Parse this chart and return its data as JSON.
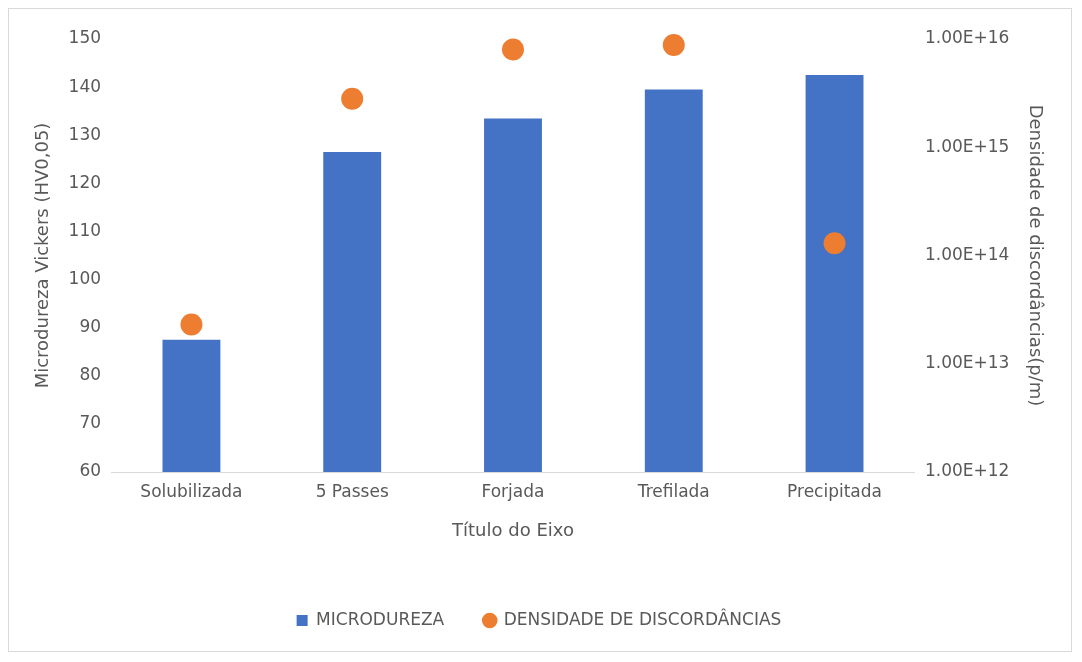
{
  "chart_data": {
    "type": "bar",
    "xlabel": "Título do Eixo",
    "ylabel": "Microdureza Vickers (HV0,05)",
    "y2label": "Densidade de discordâncias(p/m)",
    "categories": [
      "Solubilizada",
      "5 Passes",
      "Forjada",
      "Trefilada",
      "Precipitada"
    ],
    "series": [
      {
        "name": "MICRODUREZA",
        "color": "#4472c4",
        "values": [
          87.5,
          126.5,
          133.5,
          139.5,
          142.5
        ]
      },
      {
        "name": "DENSIDADE DE DISCORDÂNCIAS",
        "type": "scatter",
        "axis": "y2",
        "color": "#ed7d31",
        "values": [
          23000000000000.0,
          2800000000000000.0,
          8000000000000000.0,
          8800000000000000.0,
          130000000000000.0
        ]
      }
    ],
    "ylim": [
      60,
      150
    ],
    "yticks": [
      60,
      70,
      80,
      90,
      100,
      110,
      120,
      130,
      140,
      150
    ],
    "y2lim": [
      1000000000000.0,
      1e+16
    ],
    "y2ticks": [
      {
        "value": 1000000000000.0,
        "label": "1.00E+12"
      },
      {
        "value": 10000000000000.0,
        "label": "1.00E+13"
      },
      {
        "value": 100000000000000.0,
        "label": "1.00E+14"
      },
      {
        "value": 1000000000000000.0,
        "label": "1.00E+15"
      },
      {
        "value": 1e+16,
        "label": "1.00E+16"
      }
    ],
    "log": "y2",
    "marker": "circle",
    "legend": "bottom"
  }
}
